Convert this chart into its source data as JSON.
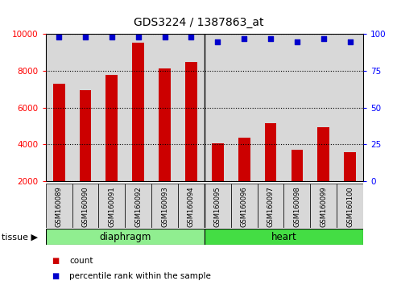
{
  "title": "GDS3224 / 1387863_at",
  "samples": [
    "GSM160089",
    "GSM160090",
    "GSM160091",
    "GSM160092",
    "GSM160093",
    "GSM160094",
    "GSM160095",
    "GSM160096",
    "GSM160097",
    "GSM160098",
    "GSM160099",
    "GSM160100"
  ],
  "counts": [
    7300,
    6950,
    7800,
    9550,
    8150,
    8500,
    4050,
    4350,
    5150,
    3700,
    4950,
    3550
  ],
  "percentiles": [
    98,
    98,
    98,
    98,
    98,
    98,
    95,
    97,
    97,
    95,
    97,
    95
  ],
  "groups": [
    {
      "label": "diaphragm",
      "start": 0,
      "end": 6,
      "color": "#90EE90"
    },
    {
      "label": "heart",
      "start": 6,
      "end": 12,
      "color": "#44DD44"
    }
  ],
  "bar_color": "#CC0000",
  "dot_color": "#0000CC",
  "ylim_left": [
    2000,
    10000
  ],
  "ylim_right": [
    0,
    100
  ],
  "yticks_left": [
    2000,
    4000,
    6000,
    8000,
    10000
  ],
  "yticks_right": [
    0,
    25,
    50,
    75,
    100
  ],
  "col_bg": "#d8d8d8",
  "grid_color": "#000000",
  "legend_count_label": "count",
  "legend_pct_label": "percentile rank within the sample",
  "tissue_label": "tissue",
  "sep_index": 6
}
